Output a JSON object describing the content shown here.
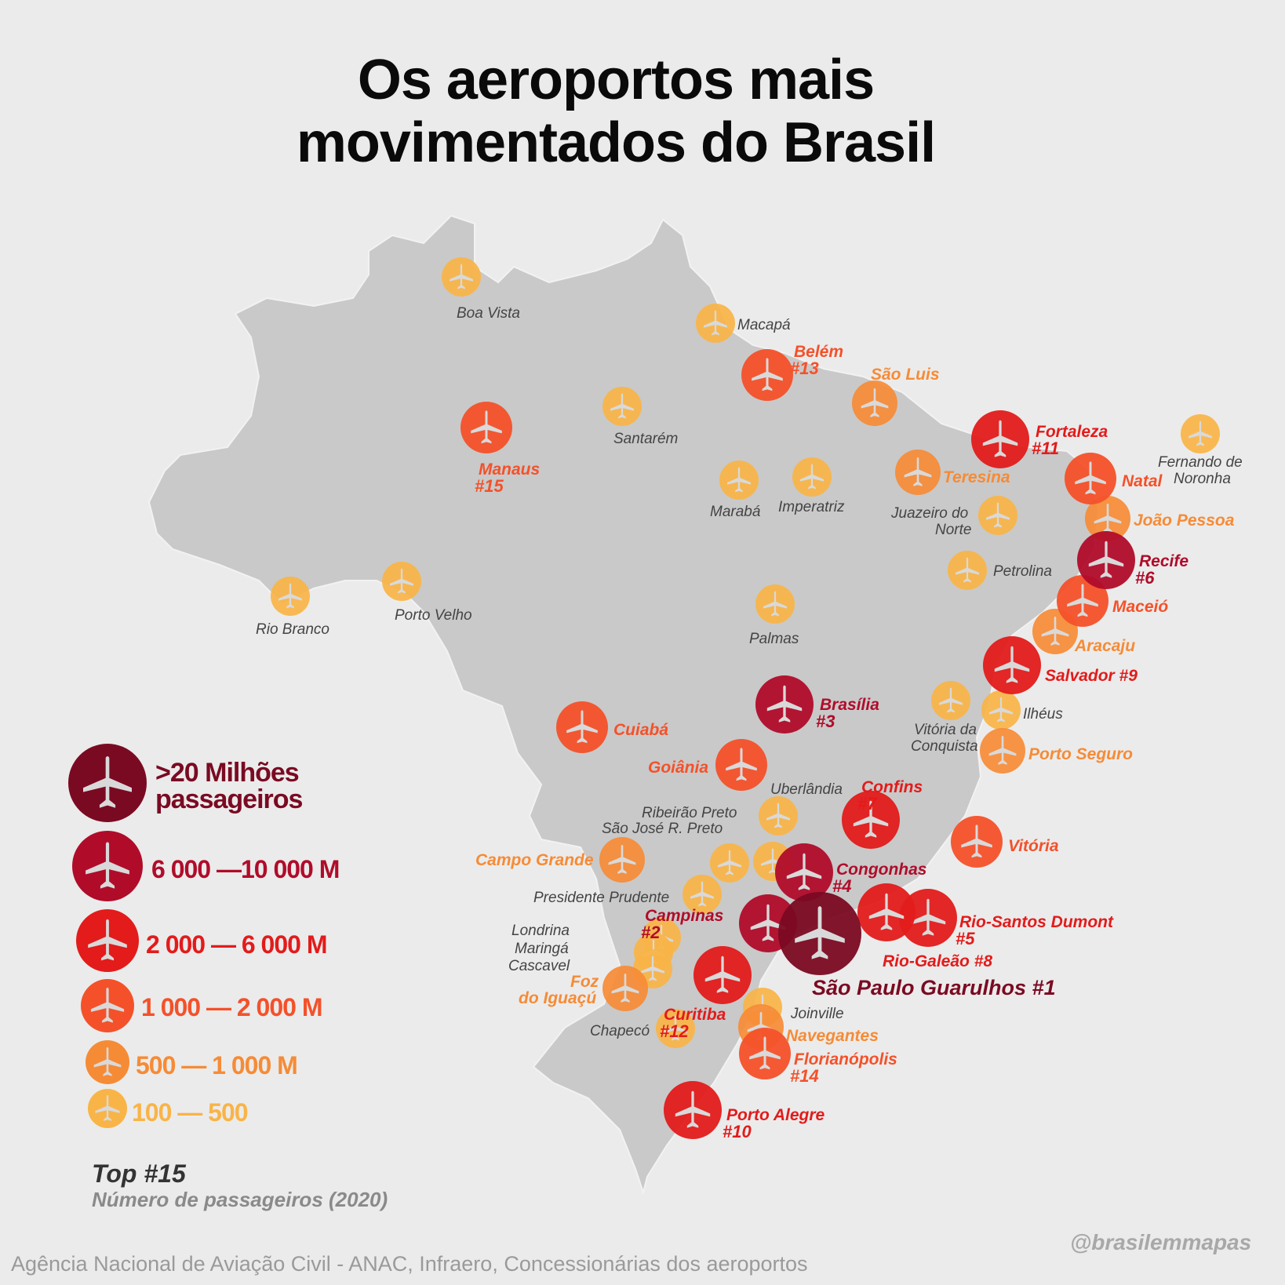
{
  "title": {
    "line1": "Os aeroportos mais",
    "line2": "movimentados do Brasil"
  },
  "legend": {
    "tiers": [
      {
        "label_line1": ">20 Milhões",
        "label_line2": "passageiros",
        "color": "#7a0a22"
      },
      {
        "label": "6 000 —10 000 M",
        "color": "#b00c2a"
      },
      {
        "label": "2 000 — 6 000 M",
        "color": "#e31b1b"
      },
      {
        "label": "1 000 — 2 000 M",
        "color": "#f4512a"
      },
      {
        "label": "500 — 1 000 M",
        "color": "#f68b36"
      },
      {
        "label": "100 — 500",
        "color": "#f9b447"
      }
    ]
  },
  "subtitle": {
    "top": "Top #15",
    "note": "Número de passageiros (2020)"
  },
  "source": "Agência Nacional de Aviação Civil - ANAC, Infraero, Concessionárias dos aeroportos",
  "handle": "@brasilemmapas",
  "icon": "airplane-icon",
  "airports": [
    {
      "name": "Boa Vista",
      "tier": 5
    },
    {
      "name": "Macapá",
      "tier": 5
    },
    {
      "name": "Belém",
      "rank": "#13",
      "tier": 3
    },
    {
      "name": "São Luis",
      "tier": 4
    },
    {
      "name": "Santarém",
      "tier": 5
    },
    {
      "name": "Manaus",
      "rank": "#15",
      "tier": 3
    },
    {
      "name": "Fortaleza",
      "rank": "#11",
      "tier": 2
    },
    {
      "name": "Fernando de Noronha",
      "tier": 5
    },
    {
      "name": "Teresina",
      "tier": 4
    },
    {
      "name": "Natal",
      "tier": 3
    },
    {
      "name": "Marabá",
      "tier": 5
    },
    {
      "name": "Imperatriz",
      "tier": 5
    },
    {
      "name": "Juazeiro do Norte",
      "tier": 5
    },
    {
      "name": "João Pessoa",
      "tier": 4
    },
    {
      "name": "Recife",
      "rank": "#6",
      "tier": 1
    },
    {
      "name": "Petrolina",
      "tier": 5
    },
    {
      "name": "Rio Branco",
      "tier": 5
    },
    {
      "name": "Porto Velho",
      "tier": 5
    },
    {
      "name": "Maceió",
      "tier": 3
    },
    {
      "name": "Palmas",
      "tier": 5
    },
    {
      "name": "Aracaju",
      "tier": 4
    },
    {
      "name": "Salvador",
      "rank": "#9",
      "tier": 2
    },
    {
      "name": "Brasília",
      "rank": "#3",
      "tier": 1
    },
    {
      "name": "Vitória da Conquista",
      "tier": 5
    },
    {
      "name": "Ilhéus",
      "tier": 5
    },
    {
      "name": "Cuiabá",
      "tier": 3
    },
    {
      "name": "Porto Seguro",
      "tier": 4
    },
    {
      "name": "Goiânia",
      "tier": 3
    },
    {
      "name": "Uberlândia",
      "tier": 5
    },
    {
      "name": "Confins",
      "rank": "#7",
      "tier": 2
    },
    {
      "name": "Ribeirão Preto",
      "tier": 5
    },
    {
      "name": "São José R. Preto",
      "tier": 5
    },
    {
      "name": "Vitória",
      "tier": 3
    },
    {
      "name": "Campo Grande",
      "tier": 4
    },
    {
      "name": "Congonhas",
      "rank": "#4",
      "tier": 1
    },
    {
      "name": "Presidente Prudente",
      "tier": 5
    },
    {
      "name": "Campinas",
      "rank": "#2",
      "tier": 1
    },
    {
      "name": "Rio-Santos Dumont",
      "rank": "#5",
      "tier": 2
    },
    {
      "name": "Rio-Galeão",
      "rank": "#8",
      "tier": 2
    },
    {
      "name": "Londrina",
      "tier": 5
    },
    {
      "name": "Maringá",
      "tier": 5
    },
    {
      "name": "Cascavel",
      "tier": 5
    },
    {
      "name": "São Paulo Guarulhos",
      "rank": "#1",
      "tier": 0
    },
    {
      "name": "Foz do Iguaçú",
      "tier": 4
    },
    {
      "name": "Joinville",
      "tier": 5
    },
    {
      "name": "Curitiba",
      "rank": "#12",
      "tier": 2
    },
    {
      "name": "Navegantes",
      "tier": 4
    },
    {
      "name": "Chapecó",
      "tier": 5
    },
    {
      "name": "Florianópolis",
      "rank": "#14",
      "tier": 3
    },
    {
      "name": "Porto Alegre",
      "rank": "#10",
      "tier": 2
    }
  ]
}
